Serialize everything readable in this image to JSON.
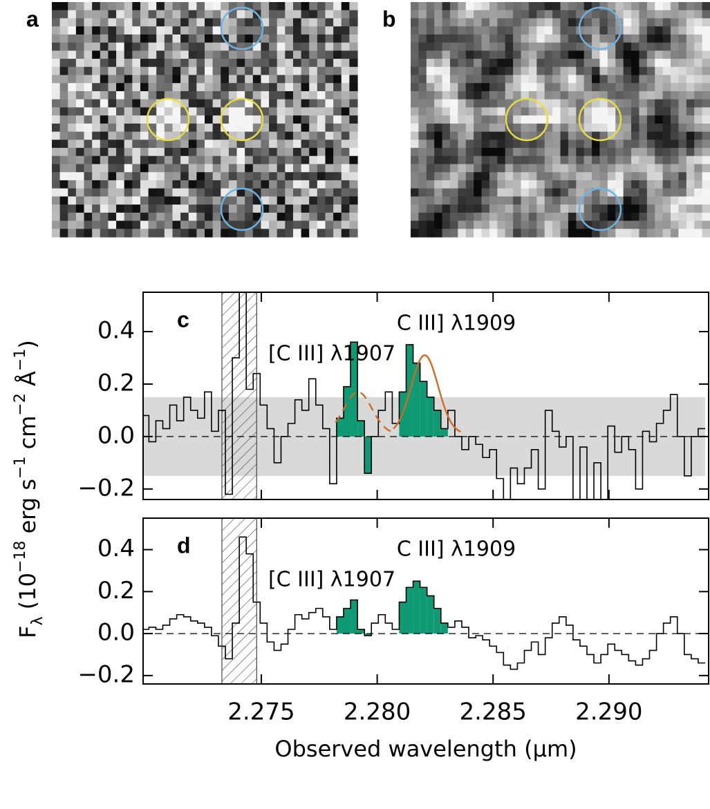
{
  "figure": {
    "image_labels": [
      "a",
      "b"
    ],
    "y_label": [
      "F",
      "λ",
      " (10",
      "−18",
      " erg s",
      "−1",
      " cm",
      "−2",
      " Å",
      "−1",
      ")"
    ],
    "x_label": "Observed wavelength (μm)"
  },
  "chart_data": [
    {
      "type": "step",
      "label": "c",
      "annotations": [
        "[C III] λ1907",
        "C III] λ1909"
      ],
      "x": [
        2.27,
        2.2703,
        2.2706,
        2.2709,
        2.2712,
        2.2715,
        2.2718,
        2.2721,
        2.2724,
        2.2727,
        2.273,
        2.2733,
        2.2736,
        2.2739,
        2.2742,
        2.2745,
        2.2748,
        2.2751,
        2.2754,
        2.2757,
        2.276,
        2.2763,
        2.2766,
        2.2769,
        2.2772,
        2.2775,
        2.2778,
        2.2781,
        2.2784,
        2.2787,
        2.279,
        2.2793,
        2.2796,
        2.2799,
        2.2802,
        2.2805,
        2.2808,
        2.2811,
        2.2814,
        2.2817,
        2.282,
        2.2823,
        2.2826,
        2.2829,
        2.2832,
        2.2835,
        2.2838,
        2.2841,
        2.2844,
        2.2847,
        2.285,
        2.2853,
        2.2856,
        2.2859,
        2.2862,
        2.2865,
        2.2868,
        2.2871,
        2.2874,
        2.2877,
        2.288,
        2.2883,
        2.2886,
        2.2889,
        2.2892,
        2.2895,
        2.2898,
        2.2901,
        2.2904,
        2.2907,
        2.291,
        2.2913,
        2.2916,
        2.2919,
        2.2922,
        2.2925,
        2.2928,
        2.2931,
        2.2934,
        2.2937,
        2.294
      ],
      "values": [
        0.08,
        -0.02,
        0.06,
        0.03,
        0.12,
        0.06,
        0.15,
        0.1,
        0.07,
        0.17,
        0.02,
        0.1,
        -0.22,
        0.3,
        0.55,
        0.18,
        0.24,
        0.12,
        0.03,
        -0.1,
        0.0,
        0.05,
        0.14,
        0.1,
        0.22,
        0.12,
        0.03,
        -0.18,
        0.07,
        0.19,
        0.36,
        0.06,
        -0.14,
        0.0,
        0.1,
        0.17,
        0.05,
        0.17,
        0.35,
        0.28,
        0.21,
        0.15,
        0.1,
        0.03,
        0.1,
        0.0,
        -0.05,
        0.0,
        -0.03,
        -0.08,
        -0.05,
        -0.16,
        -0.24,
        -0.12,
        -0.18,
        -0.12,
        -0.05,
        -0.2,
        0.1,
        0.02,
        -0.04,
        0.0,
        -0.24,
        -0.04,
        -0.24,
        -0.1,
        -0.24,
        0.04,
        -0.06,
        0.0,
        -0.05,
        -0.2,
        0.02,
        -0.02,
        0.05,
        0.1,
        0.16,
        0.0,
        -0.15,
        0.0,
        0.03
      ],
      "color": "#000000",
      "error": 0.15,
      "error_color": "#d9d9d9",
      "fill_ranges": [
        [
          2.2784,
          2.2797
        ],
        [
          2.2811,
          2.283
        ]
      ],
      "fill_color": "#0f9a73",
      "shaded_region": [
        2.2733,
        2.2748
      ],
      "fit": {
        "color": "#d2691e",
        "baseline": 0.01,
        "lines": [
          {
            "center": 2.27917,
            "amplitude": 0.16,
            "sigma": 0.0006,
            "range": [
              2.2782,
              2.2807
            ],
            "dashed": true
          },
          {
            "center": 2.28205,
            "amplitude": 0.3,
            "sigma": 0.00058,
            "range": [
              2.2807,
              2.2836
            ],
            "dashed": false
          }
        ]
      },
      "xlim": [
        2.2699,
        2.2943
      ],
      "xticks": [
        2.275,
        {
          "value": 2.28,
          "label": "2.280"
        },
        2.285,
        {
          "value": 2.29,
          "label": "2.290"
        }
      ],
      "ylim": [
        -0.24,
        0.55
      ],
      "yticks": [
        {
          "value": -0.2,
          "label": "−0.2"
        },
        {
          "value": 0,
          "label": "0.0"
        },
        0.2,
        0.4
      ]
    },
    {
      "type": "step",
      "label": "d",
      "annotations": [
        "[C III] λ1907",
        "C III] λ1909"
      ],
      "x": [
        2.27,
        2.2703,
        2.2706,
        2.2709,
        2.2712,
        2.2715,
        2.2718,
        2.2721,
        2.2724,
        2.2727,
        2.273,
        2.2733,
        2.2736,
        2.2739,
        2.2742,
        2.2745,
        2.2748,
        2.2751,
        2.2754,
        2.2757,
        2.276,
        2.2763,
        2.2766,
        2.2769,
        2.2772,
        2.2775,
        2.2778,
        2.2781,
        2.2784,
        2.2787,
        2.279,
        2.2793,
        2.2796,
        2.2799,
        2.2802,
        2.2805,
        2.2808,
        2.2811,
        2.2814,
        2.2817,
        2.282,
        2.2823,
        2.2826,
        2.2829,
        2.2832,
        2.2835,
        2.2838,
        2.2841,
        2.2844,
        2.2847,
        2.285,
        2.2853,
        2.2856,
        2.2859,
        2.2862,
        2.2865,
        2.2868,
        2.2871,
        2.2874,
        2.2877,
        2.288,
        2.2883,
        2.2886,
        2.2889,
        2.2892,
        2.2895,
        2.2898,
        2.2901,
        2.2904,
        2.2907,
        2.291,
        2.2913,
        2.2916,
        2.2919,
        2.2922,
        2.2925,
        2.2928,
        2.2931,
        2.2934,
        2.2937,
        2.294
      ],
      "values": [
        0.02,
        0.03,
        0.02,
        0.04,
        0.07,
        0.09,
        0.08,
        0.06,
        0.05,
        0.03,
        -0.01,
        -0.06,
        -0.12,
        0.05,
        0.46,
        0.38,
        0.15,
        0.05,
        -0.04,
        -0.08,
        -0.05,
        0.02,
        0.09,
        0.07,
        0.1,
        0.12,
        0.08,
        0.02,
        0.08,
        0.12,
        0.16,
        0.02,
        -0.01,
        0.05,
        0.09,
        0.05,
        0.02,
        0.15,
        0.22,
        0.25,
        0.22,
        0.18,
        0.12,
        0.05,
        0.03,
        0.06,
        0.03,
        -0.02,
        -0.01,
        -0.03,
        -0.06,
        -0.09,
        -0.15,
        -0.17,
        -0.14,
        -0.08,
        -0.04,
        -0.1,
        -0.02,
        0.05,
        0.08,
        0.04,
        -0.03,
        -0.06,
        -0.1,
        -0.14,
        -0.1,
        -0.05,
        -0.08,
        -0.1,
        -0.13,
        -0.15,
        -0.12,
        -0.08,
        0.0,
        0.05,
        0.08,
        0.0,
        -0.1,
        -0.12,
        -0.14
      ],
      "color": "#000000",
      "fill_ranges": [
        [
          2.2784,
          2.2797
        ],
        [
          2.2811,
          2.283
        ]
      ],
      "fill_color": "#0f9a73",
      "shaded_region": [
        2.2733,
        2.2748
      ],
      "xlim": [
        2.2699,
        2.2943
      ],
      "xticks": [
        2.275,
        {
          "value": 2.28,
          "label": "2.280"
        },
        2.285,
        {
          "value": 2.29,
          "label": "2.290"
        }
      ],
      "ylim": [
        -0.24,
        0.55
      ],
      "yticks": [
        {
          "value": -0.2,
          "label": "−0.2"
        },
        {
          "value": 0,
          "label": "0.0"
        },
        0.2,
        0.4
      ]
    }
  ]
}
